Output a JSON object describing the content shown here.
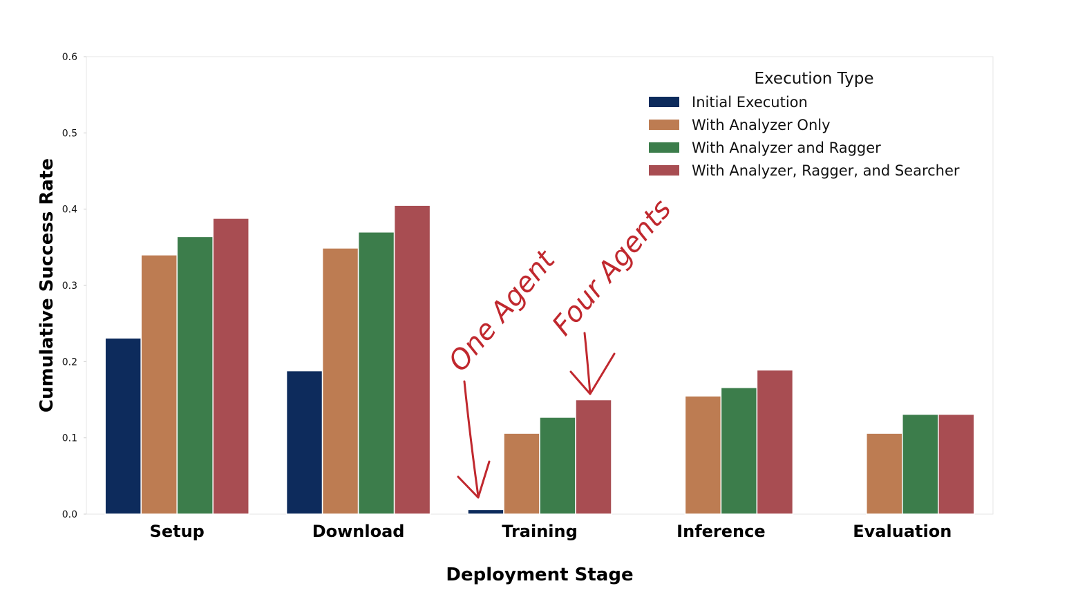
{
  "chart_data": {
    "type": "bar",
    "xlabel": "Deployment Stage",
    "ylabel": "Cumulative Success Rate",
    "ylim": [
      0,
      0.6
    ],
    "yticks": [
      "0.0",
      "0.1",
      "0.2",
      "0.3",
      "0.4",
      "0.5",
      "0.6"
    ],
    "categories": [
      "Setup",
      "Download",
      "Training",
      "Inference",
      "Evaluation"
    ],
    "legend": {
      "title": "Execution Type",
      "placement": "top-right"
    },
    "series": [
      {
        "name": "Initial Execution",
        "color": "#0d2b5c",
        "values": [
          0.231,
          0.188,
          0.006,
          0.0,
          0.0
        ]
      },
      {
        "name": "With Analyzer Only",
        "color": "#bd7c52",
        "values": [
          0.34,
          0.349,
          0.106,
          0.155,
          0.106
        ]
      },
      {
        "name": "With Analyzer and Ragger",
        "color": "#3c7d4b",
        "values": [
          0.364,
          0.37,
          0.127,
          0.166,
          0.131
        ]
      },
      {
        "name": "With Analyzer, Ragger, and Searcher",
        "color": "#a84d52",
        "values": [
          0.388,
          0.405,
          0.15,
          0.189,
          0.131
        ]
      }
    ],
    "grid": false,
    "annotations": [
      {
        "text": "One Agent",
        "color": "#c0282e",
        "target": "Training / Initial Execution"
      },
      {
        "text": "Four Agents",
        "color": "#c0282e",
        "target": "Training / With Analyzer, Ragger, and Searcher"
      }
    ]
  }
}
